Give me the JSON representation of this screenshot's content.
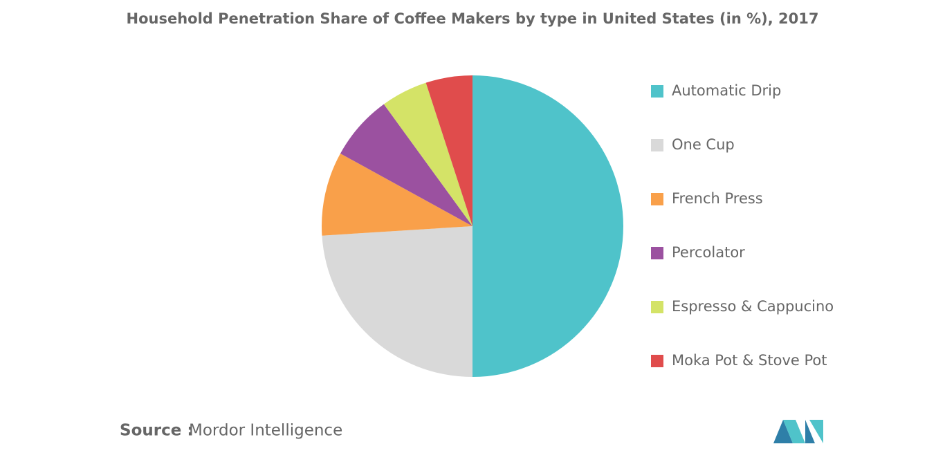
{
  "chart_data": {
    "type": "pie",
    "title": "Household Penetration Share of Coffee Makers by type in United States (in %), 2017",
    "categories": [
      "Automatic Drip",
      "One Cup",
      "French Press",
      "Percolator",
      "Espresso & Cappucino",
      "Moka Pot & Stove Pot"
    ],
    "values": [
      50,
      24,
      9,
      7,
      5,
      5
    ],
    "colors": [
      "#4fc3ca",
      "#d9d9d9",
      "#f9a04a",
      "#9b51a0",
      "#d4e367",
      "#e04c4c"
    ],
    "legend": "right"
  },
  "source_label": "Source :",
  "source": "Mordor Intelligence"
}
